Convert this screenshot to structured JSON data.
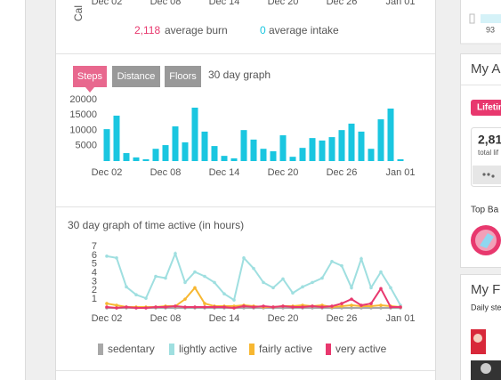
{
  "calories_summary": {
    "y_label": "Cal",
    "x_labels": [
      "Dec 02",
      "Dec 08",
      "Dec 14",
      "Dec 20",
      "Dec 26",
      "Jan 01"
    ],
    "burn_value": "2,118",
    "burn_label": "average burn",
    "intake_value": "0",
    "intake_label": "average intake"
  },
  "chart_data": [
    {
      "type": "bar",
      "tabs": [
        "Steps",
        "Distance",
        "Floors"
      ],
      "subtitle": "30 day graph",
      "categories": [
        "Dec 02",
        null,
        null,
        null,
        null,
        null,
        "Dec 08",
        null,
        null,
        null,
        null,
        null,
        "Dec 14",
        null,
        null,
        null,
        null,
        null,
        "Dec 20",
        null,
        null,
        null,
        null,
        null,
        "Dec 26",
        null,
        null,
        null,
        null,
        null,
        "Jan 01"
      ],
      "values": [
        10400,
        14800,
        2600,
        1200,
        600,
        4000,
        5200,
        11300,
        6100,
        17400,
        9600,
        4900,
        1700,
        900,
        10100,
        7000,
        4000,
        3200,
        8400,
        1400,
        4300,
        7500,
        6700,
        7800,
        10100,
        12200,
        9600,
        4000,
        13600,
        17100,
        600
      ],
      "color": "#1ac6e0",
      "ylim": [
        0,
        20000
      ],
      "yticks": [
        5000,
        10000,
        15000,
        20000
      ]
    },
    {
      "type": "line",
      "title": "30 day graph of time active (in hours)",
      "categories": [
        "Dec 02",
        null,
        null,
        null,
        null,
        null,
        "Dec 08",
        null,
        null,
        null,
        null,
        null,
        "Dec 14",
        null,
        null,
        null,
        null,
        null,
        "Dec 20",
        null,
        null,
        null,
        null,
        null,
        "Dec 26",
        null,
        null,
        null,
        null,
        null,
        "Jan 01"
      ],
      "series": [
        {
          "name": "sedentary",
          "color": "#a8a8a8",
          "values": [
            0,
            0,
            0,
            0,
            0,
            0,
            0,
            0,
            0,
            0,
            0,
            0,
            0,
            0,
            0,
            0,
            0,
            0,
            0,
            0,
            0,
            0,
            0,
            0,
            0,
            0,
            0,
            0,
            0,
            0,
            0
          ]
        },
        {
          "name": "lightly active",
          "color": "#9fdfe0",
          "values": [
            5.9,
            5.7,
            2.4,
            1.5,
            1.1,
            3.6,
            3.4,
            6.2,
            2.9,
            4.1,
            3.6,
            2.9,
            1.6,
            0.9,
            5.7,
            4.5,
            2.9,
            2.3,
            3.3,
            1.7,
            2.4,
            2.9,
            3.4,
            5.3,
            4.8,
            2.3,
            5.6,
            2.3,
            4.1,
            2.3,
            0.3
          ]
        },
        {
          "name": "fairly active",
          "color": "#f7b731",
          "values": [
            0.5,
            0.3,
            0.1,
            0.1,
            0.1,
            0.1,
            0.2,
            0.2,
            1.0,
            2.3,
            0.5,
            0.2,
            0.2,
            0.2,
            0.3,
            0.2,
            0.1,
            0.1,
            0.2,
            0.2,
            0.3,
            0.2,
            0.3,
            0.1,
            0.2,
            0.3,
            0.2,
            0.2,
            0.3,
            0.2,
            0.1
          ]
        },
        {
          "name": "very active",
          "color": "#e8386e",
          "values": [
            0.1,
            0.0,
            0.1,
            0.0,
            0.0,
            0.1,
            0.1,
            0.2,
            0.1,
            0.1,
            0.1,
            0.1,
            0.1,
            0.0,
            0.2,
            0.1,
            0.2,
            0.1,
            0.2,
            0.1,
            0.1,
            0.2,
            0.1,
            0.2,
            0.5,
            1.0,
            0.3,
            0.5,
            2.2,
            0.1,
            0.1
          ]
        }
      ],
      "ylim": [
        0,
        7
      ],
      "yticks": [
        1,
        2,
        3,
        4,
        5,
        6,
        7
      ]
    }
  ],
  "sidebar": {
    "top_value": "93",
    "achievements_heading": "My A",
    "lifetime_badge": "Lifetim",
    "lifetime_value": "2,81",
    "lifetime_caption": "total lif",
    "top_badges": "Top Ba",
    "friends_heading": "My F",
    "friends_caption": "Daily ste"
  }
}
